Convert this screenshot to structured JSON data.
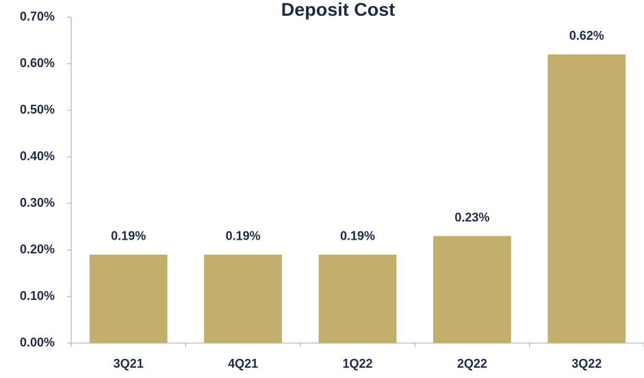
{
  "chart_data": {
    "type": "bar",
    "title": "Deposit Cost",
    "categories": [
      "3Q21",
      "4Q21",
      "1Q22",
      "2Q22",
      "3Q22"
    ],
    "values": [
      0.19,
      0.19,
      0.19,
      0.23,
      0.62
    ],
    "value_labels": [
      "0.19%",
      "0.19%",
      "0.19%",
      "0.23%",
      "0.62%"
    ],
    "color": "#c2ae6d",
    "ylim": [
      0,
      0.7
    ],
    "yticks": [
      {
        "value": 0,
        "label": "0.00%"
      },
      {
        "value": 0.1,
        "label": "0.10%"
      },
      {
        "value": 0.2,
        "label": "0.20%"
      },
      {
        "value": 0.3,
        "label": "0.30%"
      },
      {
        "value": 0.4,
        "label": "0.40%"
      },
      {
        "value": 0.5,
        "label": "0.50%"
      },
      {
        "value": 0.6,
        "label": "0.60%"
      },
      {
        "value": 0.7,
        "label": "0.70%"
      }
    ],
    "grid": false
  }
}
